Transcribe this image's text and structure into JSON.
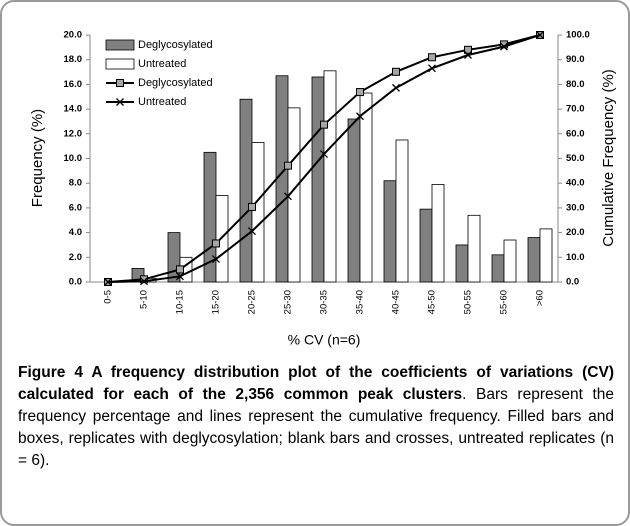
{
  "chart_data": {
    "type": "combo",
    "categories": [
      "0-5",
      "5-10",
      "10-15",
      "15-20",
      "20-25",
      "25-30",
      "30-35",
      "35-40",
      "40-45",
      "45-50",
      "50-55",
      "55-60",
      ">60"
    ],
    "series": [
      {
        "name": "Deglycosylated",
        "type": "bar",
        "color": "#808080",
        "values": [
          0,
          1.1,
          4.0,
          10.5,
          14.8,
          16.7,
          16.6,
          13.2,
          8.2,
          5.9,
          3.0,
          2.2,
          3.6
        ]
      },
      {
        "name": "Untreated",
        "type": "bar",
        "color": "#ffffff",
        "values": [
          0,
          0.3,
          2.0,
          7.0,
          11.3,
          14.1,
          17.1,
          15.3,
          11.5,
          7.9,
          5.4,
          3.4,
          4.3
        ]
      },
      {
        "name": "Deglycosylated",
        "type": "line",
        "marker": "square",
        "color": "#000000",
        "axis": "y2",
        "values": [
          0,
          1.1,
          5.1,
          15.6,
          30.4,
          47.1,
          63.7,
          76.9,
          85.1,
          91.0,
          94.0,
          96.2,
          100
        ]
      },
      {
        "name": "Untreated",
        "type": "line",
        "marker": "cross",
        "color": "#000000",
        "axis": "y2",
        "values": [
          0,
          0.3,
          2.3,
          9.3,
          20.6,
          34.7,
          51.8,
          67.1,
          78.6,
          86.5,
          91.9,
          95.3,
          100
        ]
      }
    ],
    "x_label": "% CV (n=6)",
    "y_label": "Frequency (%)",
    "y2_label": "Cumulative Frequency (%)",
    "ylim": [
      0,
      20
    ],
    "yticks": [
      {
        "value": 0,
        "label": "0.0"
      },
      {
        "value": 2,
        "label": "2.0"
      },
      {
        "value": 4,
        "label": "4.0"
      },
      {
        "value": 6,
        "label": "6.0"
      },
      {
        "value": 8,
        "label": "8.0"
      },
      {
        "value": 10,
        "label": "10.0"
      },
      {
        "value": 12,
        "label": "12.0"
      },
      {
        "value": 14,
        "label": "14.0"
      },
      {
        "value": 16,
        "label": "16.0"
      },
      {
        "value": 18,
        "label": "18.0"
      },
      {
        "value": 20,
        "label": "20.0"
      }
    ],
    "y2lim": [
      0,
      100
    ],
    "y2ticks": [
      {
        "value": 0,
        "label": "0.0"
      },
      {
        "value": 10,
        "label": "10.0"
      },
      {
        "value": 20,
        "label": "20.0"
      },
      {
        "value": 30,
        "label": "30.0"
      },
      {
        "value": 40,
        "label": "40.0"
      },
      {
        "value": 50,
        "label": "50.0"
      },
      {
        "value": 60,
        "label": "60.0"
      },
      {
        "value": 70,
        "label": "70.0"
      },
      {
        "value": 80,
        "label": "80.0"
      },
      {
        "value": 90,
        "label": "90.0"
      },
      {
        "value": 100,
        "label": "100.0"
      }
    ],
    "legend": "upper-left",
    "grid": false
  },
  "caption": {
    "title": "Figure 4 A frequency distribution plot of the coefficients of variations (CV) calculated for each of the 2,356 common peak clusters",
    "text": ". Bars represent the frequency percentage and lines represent the cumulative frequency. Filled bars and boxes, replicates with deglycosylation; blank bars and crosses, untreated replicates (n = 6)."
  }
}
